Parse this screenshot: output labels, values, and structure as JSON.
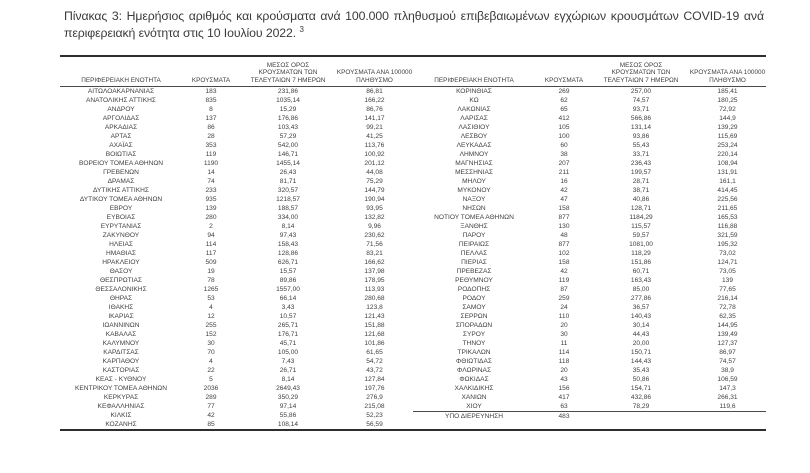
{
  "page": {
    "title": "Πίνακας 3:  Ημερήσιος αριθμός και κρούσματα ανά 100.000 πληθυσμού επιβεβαιωμένων εγχώριων κρουσμάτων COVID-19 ανά περιφερειακή ενότητα στις 10 Ιουλίου 2022.",
    "title_footnote_ref": "3"
  },
  "colors": {
    "text": "#3f3f3f",
    "rule": "#2e2e2e"
  },
  "table": {
    "headers": {
      "region": "ΠΕΡΙΦΕΡΕΙΑΚΗ ΕΝΟΤΗΤΑ",
      "cases": "ΚΡΟΥΣΜΑΤΑ",
      "avg7": "ΜΕΣΟΣ ΟΡΟΣ\nΚΡΟΥΣΜΑΤΩΝ ΤΩΝ\nΤΕΛΕΥΤΑΙΩΝ 7 ΗΜΕΡΩΝ",
      "per100k": "ΚΡΟΥΣΜΑΤΑ ΑΝΑ 100000\nΠΛΗΘΥΣΜΟ"
    },
    "left_rows": [
      [
        "ΑΙΤΩΛΟΑΚΑΡΝΑΝΙΑΣ",
        "183",
        "231,86",
        "86,81"
      ],
      [
        "ΑΝΑΤΟΛΙΚΗΣ ΑΤΤΙΚΗΣ",
        "835",
        "1035,14",
        "166,22"
      ],
      [
        "ΑΝΔΡΟΥ",
        "8",
        "15,29",
        "86,76"
      ],
      [
        "ΑΡΓΟΛΙΔΑΣ",
        "137",
        "176,86",
        "141,17"
      ],
      [
        "ΑΡΚΑΔΙΑΣ",
        "86",
        "103,43",
        "99,21"
      ],
      [
        "ΑΡΤΑΣ",
        "28",
        "57,29",
        "41,25"
      ],
      [
        "ΑΧΑΪΑΣ",
        "353",
        "542,00",
        "113,76"
      ],
      [
        "ΒΟΙΩΤΙΑΣ",
        "119",
        "146,71",
        "100,92"
      ],
      [
        "ΒΟΡΕΙΟΥ ΤΟΜΕΑ ΑΘΗΝΩΝ",
        "1190",
        "1455,14",
        "201,12"
      ],
      [
        "ΓΡΕΒΕΝΩΝ",
        "14",
        "26,43",
        "44,08"
      ],
      [
        "ΔΡΑΜΑΣ",
        "74",
        "81,71",
        "75,29"
      ],
      [
        "ΔΥΤΙΚΗΣ ΑΤΤΙΚΗΣ",
        "233",
        "320,57",
        "144,79"
      ],
      [
        "ΔΥΤΙΚΟΥ ΤΟΜΕΑ ΑΘΗΝΩΝ",
        "935",
        "1218,57",
        "190,94"
      ],
      [
        "ΕΒΡΟΥ",
        "139",
        "188,57",
        "93,95"
      ],
      [
        "ΕΥΒΟΙΑΣ",
        "280",
        "334,00",
        "132,82"
      ],
      [
        "ΕΥΡΥΤΑΝΙΑΣ",
        "2",
        "8,14",
        "9,96"
      ],
      [
        "ΖΑΚΥΝΘΟΥ",
        "94",
        "97,43",
        "230,62"
      ],
      [
        "ΗΛΕΙΑΣ",
        "114",
        "158,43",
        "71,56"
      ],
      [
        "ΗΜΑΘΙΑΣ",
        "117",
        "128,86",
        "83,21"
      ],
      [
        "ΗΡΑΚΛΕΙΟΥ",
        "509",
        "626,71",
        "166,62"
      ],
      [
        "ΘΑΣΟΥ",
        "19",
        "15,57",
        "137,98"
      ],
      [
        "ΘΕΣΠΡΩΤΙΑΣ",
        "78",
        "89,86",
        "178,95"
      ],
      [
        "ΘΕΣΣΑΛΟΝΙΚΗΣ",
        "1265",
        "1557,00",
        "113,93"
      ],
      [
        "ΘΗΡΑΣ",
        "53",
        "66,14",
        "280,68"
      ],
      [
        "ΙΘΑΚΗΣ",
        "4",
        "3,43",
        "123,8"
      ],
      [
        "ΙΚΑΡΙΑΣ",
        "12",
        "10,57",
        "121,43"
      ],
      [
        "ΙΩΑΝΝΙΝΩΝ",
        "255",
        "265,71",
        "151,88"
      ],
      [
        "ΚΑΒΑΛΑΣ",
        "152",
        "176,71",
        "121,68"
      ],
      [
        "ΚΑΛΥΜΝΟΥ",
        "30",
        "45,71",
        "101,86"
      ],
      [
        "ΚΑΡΔΙΤΣΑΣ",
        "70",
        "105,00",
        "61,65"
      ],
      [
        "ΚΑΡΠΑΘΟΥ",
        "4",
        "7,43",
        "54,72"
      ],
      [
        "ΚΑΣΤΟΡΙΑΣ",
        "22",
        "26,71",
        "43,72"
      ],
      [
        "ΚΕΑΣ - ΚΥΘΝΟΥ",
        "5",
        "8,14",
        "127,84"
      ],
      [
        "ΚΕΝΤΡΙΚΟΥ ΤΟΜΕΑ ΑΘΗΝΩΝ",
        "2036",
        "2649,43",
        "197,76"
      ],
      [
        "ΚΕΡΚΥΡΑΣ",
        "289",
        "350,29",
        "276,9"
      ],
      [
        "ΚΕΦΑΛΛΗΝΙΑΣ",
        "77",
        "97,14",
        "215,08"
      ],
      [
        "ΚΙΛΚΙΣ",
        "42",
        "55,86",
        "52,23"
      ],
      [
        "ΚΟΖΑΝΗΣ",
        "85",
        "108,14",
        "56,59"
      ]
    ],
    "right_rows": [
      [
        "ΚΟΡΙΝΘΙΑΣ",
        "269",
        "257,00",
        "185,41"
      ],
      [
        "ΚΩ",
        "62",
        "74,57",
        "180,25"
      ],
      [
        "ΛΑΚΩΝΙΑΣ",
        "65",
        "93,71",
        "72,92"
      ],
      [
        "ΛΑΡΙΣΑΣ",
        "412",
        "566,86",
        "144,9"
      ],
      [
        "ΛΑΣΙΘΙΟΥ",
        "105",
        "131,14",
        "139,29"
      ],
      [
        "ΛΕΣΒΟΥ",
        "100",
        "93,86",
        "115,69"
      ],
      [
        "ΛΕΥΚΑΔΑΣ",
        "60",
        "55,43",
        "253,24"
      ],
      [
        "ΛΗΜΝΟΥ",
        "38",
        "33,71",
        "220,14"
      ],
      [
        "ΜΑΓΝΗΣΙΑΣ",
        "207",
        "236,43",
        "108,94"
      ],
      [
        "ΜΕΣΣΗΝΙΑΣ",
        "211",
        "199,57",
        "131,91"
      ],
      [
        "ΜΗΛΟΥ",
        "16",
        "28,71",
        "161,1"
      ],
      [
        "ΜΥΚΟΝΟΥ",
        "42",
        "38,71",
        "414,45"
      ],
      [
        "ΝΑΞΟΥ",
        "47",
        "40,86",
        "225,56"
      ],
      [
        "ΝΗΣΩΝ",
        "158",
        "128,71",
        "211,65"
      ],
      [
        "ΝΟΤΙΟΥ ΤΟΜΕΑ ΑΘΗΝΩΝ",
        "877",
        "1184,29",
        "165,53"
      ],
      [
        "ΞΑΝΘΗΣ",
        "130",
        "115,57",
        "116,88"
      ],
      [
        "ΠΑΡΟΥ",
        "48",
        "59,57",
        "321,59"
      ],
      [
        "ΠΕΙΡΑΙΩΣ",
        "877",
        "1081,00",
        "195,32"
      ],
      [
        "ΠΕΛΛΑΣ",
        "102",
        "118,29",
        "73,02"
      ],
      [
        "ΠΙΕΡΙΑΣ",
        "158",
        "151,86",
        "124,71"
      ],
      [
        "ΠΡΕΒΕΖΑΣ",
        "42",
        "60,71",
        "73,05"
      ],
      [
        "ΡΕΘΥΜΝΟΥ",
        "119",
        "163,43",
        "139"
      ],
      [
        "ΡΟΔΟΠΗΣ",
        "87",
        "85,00",
        "77,65"
      ],
      [
        "ΡΟΔΟΥ",
        "259",
        "277,86",
        "216,14"
      ],
      [
        "ΣΑΜΟΥ",
        "24",
        "36,57",
        "72,78"
      ],
      [
        "ΣΕΡΡΩΝ",
        "110",
        "140,43",
        "62,35"
      ],
      [
        "ΣΠΟΡΑΔΩΝ",
        "20",
        "30,14",
        "144,95"
      ],
      [
        "ΣΥΡΟΥ",
        "30",
        "44,43",
        "139,49"
      ],
      [
        "ΤΗΝΟΥ",
        "11",
        "20,00",
        "127,37"
      ],
      [
        "ΤΡΙΚΑΛΩΝ",
        "114",
        "150,71",
        "86,97"
      ],
      [
        "ΦΘΙΩΤΙΔΑΣ",
        "118",
        "144,43",
        "74,57"
      ],
      [
        "ΦΛΩΡΙΝΑΣ",
        "20",
        "35,43",
        "38,9"
      ],
      [
        "ΦΩΚΙΔΑΣ",
        "43",
        "50,86",
        "106,59"
      ],
      [
        "ΧΑΛΚΙΔΙΚΗΣ",
        "156",
        "154,71",
        "147,3"
      ],
      [
        "ΧΑΝΙΩΝ",
        "417",
        "432,86",
        "266,31"
      ],
      [
        "ΧΙΟΥ",
        "63",
        "78,29",
        "119,6"
      ]
    ],
    "pending_row": {
      "region": "ΥΠΟ ΔΙΕΡΕΥΝΗΣΗ",
      "cases": "483",
      "avg7": "",
      "per100k": ""
    }
  }
}
